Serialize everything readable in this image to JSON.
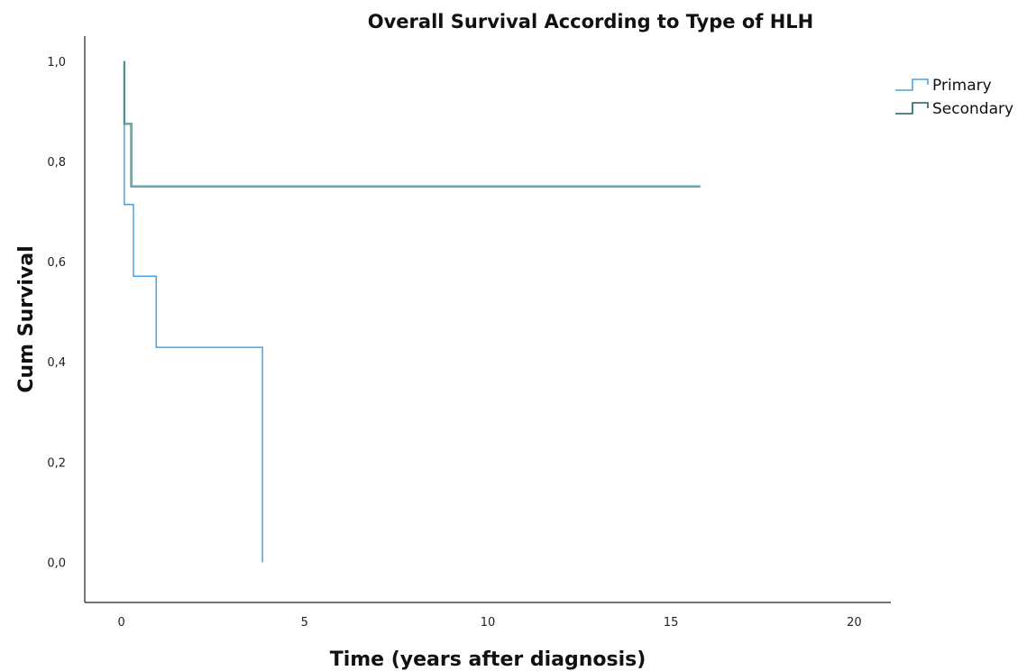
{
  "chart_data": {
    "type": "line",
    "step": true,
    "title": "Overall Survival According to Type of HLH",
    "xlabel": "Time (years after diagnosis)",
    "ylabel": "Cum Survival",
    "xlim": [
      -1,
      21
    ],
    "ylim": [
      -0.08,
      1.05
    ],
    "x_ticks": [
      0,
      5,
      10,
      15,
      20
    ],
    "x_tick_labels": [
      "0",
      "5",
      "10",
      "15",
      "20"
    ],
    "y_ticks": [
      0.0,
      0.2,
      0.4,
      0.6,
      0.8,
      1.0
    ],
    "y_tick_labels": [
      "0,0",
      "0,2",
      "0,4",
      "0,6",
      "0,8",
      "1,0"
    ],
    "grid": false,
    "legend_position": "top-right",
    "series": [
      {
        "name": "Primary",
        "color": "#4aa3e6",
        "x": [
          0.08,
          0.08,
          0.33,
          0.33,
          0.95,
          0.95,
          3.85,
          3.85
        ],
        "y": [
          1.0,
          0.714,
          0.714,
          0.571,
          0.571,
          0.429,
          0.429,
          0.0
        ]
      },
      {
        "name": "Secondary",
        "color": "#1f5f5b",
        "overlay_color": "#7fb9c6",
        "x": [
          0.08,
          0.08,
          0.27,
          0.27,
          15.8
        ],
        "y": [
          1.0,
          0.875,
          0.875,
          0.75,
          0.75
        ]
      }
    ]
  }
}
